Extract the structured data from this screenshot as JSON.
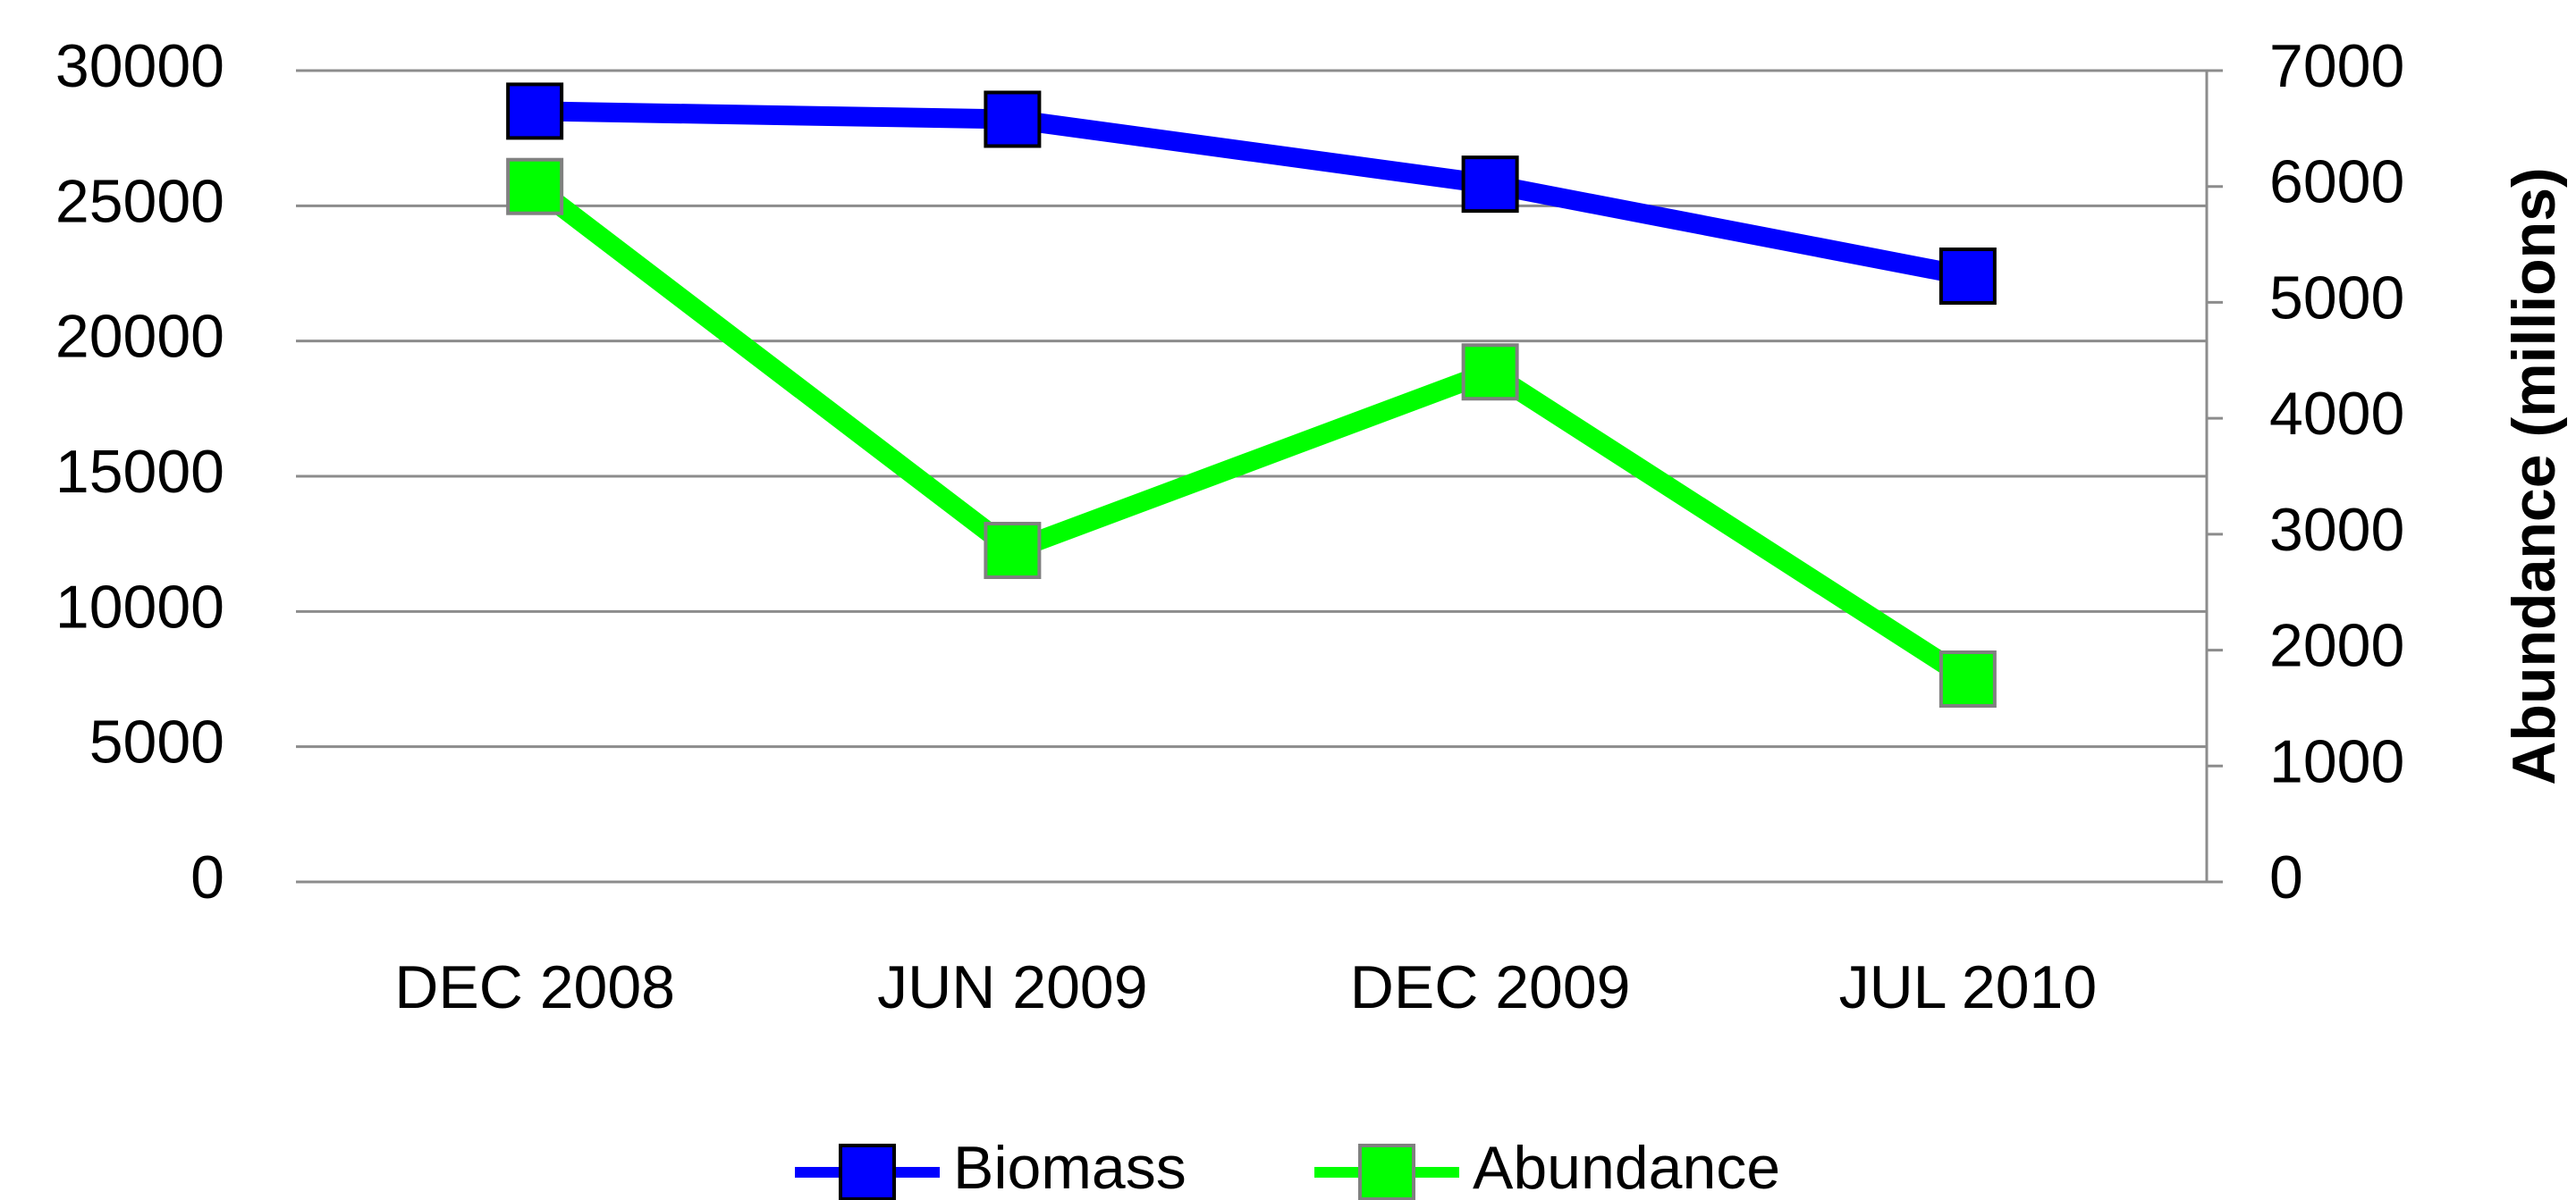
{
  "chart_data": {
    "type": "line",
    "categories": [
      "DEC 2008",
      "JUN 2009",
      "DEC 2009",
      "JUL 2010"
    ],
    "series": [
      {
        "name": "Biomass",
        "color": "#0000ff",
        "marker_stroke": "#000000",
        "values": [
          28500,
          28200,
          25800,
          22400
        ]
      },
      {
        "name": "Abundance",
        "color": "#00ff00",
        "marker_stroke": "#808080",
        "axis": "y2",
        "values": [
          6000,
          2860,
          4400,
          1750
        ]
      }
    ],
    "ylim": [
      0,
      30000
    ],
    "yticks": [
      0,
      5000,
      10000,
      15000,
      20000,
      25000,
      30000
    ],
    "y2lim": [
      0,
      7000
    ],
    "y2ticks": [
      0,
      1000,
      2000,
      3000,
      4000,
      5000,
      6000,
      7000
    ],
    "y2label": "Abundance (millions)",
    "grid": true,
    "legend": "bottom"
  }
}
